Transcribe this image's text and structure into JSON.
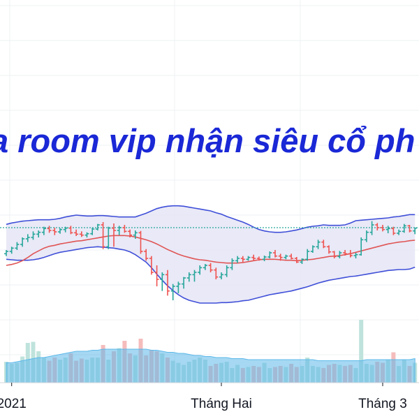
{
  "caption": "a room vip nhận siêu cổ ph",
  "chart_data": {
    "type": "candlestick",
    "x_tick_labels": [
      "2021",
      "Tháng Hai",
      "Tháng 3"
    ],
    "x_tick_bar_index": [
      1,
      40,
      70
    ],
    "reference_line": 100.6,
    "y_range": [
      82,
      112
    ],
    "volume_range": [
      0,
      100
    ],
    "colors": {
      "up": "#26a69a",
      "down": "#ef5350",
      "bollinger_band": "#3f4fd8",
      "bollinger_fill": "#e3e4f5",
      "moving_average": "#e05555",
      "reference_line": "#26a69a",
      "caption": "#1a28d6",
      "volume_up": "#bfe3dc",
      "volume_down": "#f5bcbc",
      "volume_area": "#5db8ea",
      "grid": "#eef0f3"
    },
    "series": [
      {
        "name": "OHLC",
        "ohlc": [
          [
            95.0,
            95.8,
            94.5,
            95.5
          ],
          [
            95.5,
            96.5,
            95.0,
            96.2
          ],
          [
            96.2,
            97.5,
            95.8,
            97.0
          ],
          [
            97.0,
            98.5,
            96.5,
            98.2
          ],
          [
            98.2,
            99.2,
            97.5,
            98.5
          ],
          [
            98.5,
            99.8,
            98.0,
            99.2
          ],
          [
            99.2,
            100.0,
            98.5,
            99.6
          ],
          [
            99.6,
            100.8,
            99.0,
            100.4
          ],
          [
            100.4,
            101.0,
            99.5,
            100.0
          ],
          [
            100.0,
            100.6,
            99.0,
            99.7
          ],
          [
            99.7,
            100.5,
            99.3,
            100.2
          ],
          [
            100.2,
            100.8,
            99.6,
            100.5
          ],
          [
            100.5,
            101.0,
            99.2,
            99.5
          ],
          [
            99.5,
            100.2,
            98.8,
            99.2
          ],
          [
            99.2,
            99.8,
            98.6,
            99.0
          ],
          [
            99.0,
            99.6,
            98.5,
            99.3
          ],
          [
            99.3,
            100.6,
            99.0,
            100.3
          ],
          [
            100.3,
            101.4,
            100.0,
            101.2
          ],
          [
            101.2,
            101.8,
            96.0,
            96.5
          ],
          [
            96.5,
            100.8,
            96.0,
            100.5
          ],
          [
            100.5,
            101.5,
            96.5,
            100.0
          ],
          [
            100.0,
            101.0,
            99.0,
            100.6
          ],
          [
            100.6,
            101.2,
            99.5,
            99.8
          ],
          [
            99.8,
            100.2,
            98.5,
            99.0
          ],
          [
            99.0,
            100.0,
            98.2,
            99.5
          ],
          [
            99.5,
            99.9,
            95.0,
            95.5
          ],
          [
            95.5,
            96.0,
            93.5,
            94.0
          ],
          [
            94.0,
            94.5,
            90.5,
            91.0
          ],
          [
            91.0,
            92.5,
            88.0,
            89.5
          ],
          [
            89.5,
            91.0,
            87.0,
            90.5
          ],
          [
            90.5,
            91.5,
            86.0,
            87.0
          ],
          [
            87.0,
            88.5,
            85.0,
            88.0
          ],
          [
            88.0,
            89.0,
            86.5,
            88.5
          ],
          [
            88.5,
            90.0,
            87.5,
            89.8
          ],
          [
            89.8,
            91.0,
            89.0,
            90.5
          ],
          [
            90.5,
            91.5,
            89.0,
            91.0
          ],
          [
            91.0,
            92.5,
            90.5,
            92.0
          ],
          [
            92.0,
            92.8,
            91.5,
            92.5
          ],
          [
            92.5,
            93.0,
            91.0,
            91.5
          ],
          [
            91.5,
            92.0,
            89.5,
            90.0
          ],
          [
            90.0,
            91.0,
            89.5,
            90.5
          ],
          [
            90.5,
            92.5,
            90.0,
            92.0
          ],
          [
            92.0,
            94.0,
            91.5,
            93.5
          ],
          [
            93.5,
            94.5,
            93.0,
            94.0
          ],
          [
            94.0,
            94.5,
            93.2,
            93.8
          ],
          [
            93.8,
            94.5,
            93.5,
            94.2
          ],
          [
            94.2,
            94.8,
            93.5,
            94.0
          ],
          [
            94.0,
            94.4,
            93.5,
            93.8
          ],
          [
            93.8,
            94.6,
            93.4,
            94.3
          ],
          [
            94.3,
            95.5,
            94.0,
            95.2
          ],
          [
            95.2,
            95.8,
            94.2,
            94.5
          ],
          [
            94.5,
            95.0,
            93.5,
            94.2
          ],
          [
            94.2,
            94.8,
            93.8,
            94.5
          ],
          [
            94.5,
            95.0,
            93.8,
            94.0
          ],
          [
            94.0,
            94.3,
            93.0,
            93.2
          ],
          [
            93.2,
            94.0,
            92.8,
            93.8
          ],
          [
            93.8,
            96.0,
            93.5,
            95.5
          ],
          [
            95.5,
            96.8,
            95.2,
            96.5
          ],
          [
            96.5,
            98.0,
            96.0,
            97.5
          ],
          [
            97.5,
            98.0,
            96.2,
            96.5
          ],
          [
            96.5,
            96.8,
            95.0,
            95.4
          ],
          [
            95.4,
            95.6,
            94.0,
            94.4
          ],
          [
            94.4,
            95.6,
            94.0,
            95.2
          ],
          [
            95.2,
            95.8,
            94.6,
            95.0
          ],
          [
            95.0,
            95.8,
            94.2,
            94.6
          ],
          [
            94.6,
            95.2,
            94.0,
            94.8
          ],
          [
            94.8,
            98.5,
            94.6,
            98.0
          ],
          [
            98.0,
            100.0,
            97.5,
            99.6
          ],
          [
            99.6,
            102.0,
            99.0,
            101.2
          ],
          [
            101.2,
            101.6,
            100.0,
            100.6
          ],
          [
            100.6,
            101.2,
            99.8,
            100.2
          ],
          [
            100.2,
            101.0,
            99.4,
            100.4
          ],
          [
            100.4,
            100.8,
            99.0,
            99.4
          ],
          [
            99.4,
            100.2,
            99.0,
            99.8
          ],
          [
            99.8,
            101.4,
            99.5,
            101.0
          ],
          [
            101.0,
            101.2,
            99.6,
            99.9
          ],
          [
            99.9,
            100.6,
            99.2,
            100.5
          ]
        ]
      },
      {
        "name": "BB upper",
        "values": [
          101.3,
          101.6,
          101.8,
          102.0,
          102.1,
          102.2,
          102.3,
          102.3,
          102.3,
          102.4,
          102.6,
          102.9,
          103.1,
          103.3,
          103.2,
          103.1,
          103.1,
          103.2,
          103.2,
          103.1,
          103.0,
          102.9,
          102.9,
          102.9,
          102.9,
          103.3,
          103.7,
          104.2,
          104.7,
          105.0,
          105.2,
          105.3,
          105.3,
          105.2,
          105.0,
          104.8,
          104.6,
          104.4,
          104.2,
          103.8,
          103.5,
          103.0,
          102.6,
          102.2,
          101.8,
          101.3,
          100.7,
          100.2,
          99.9,
          99.7,
          99.6,
          99.6,
          99.7,
          99.9,
          100.1,
          100.4,
          100.7,
          100.9,
          101.0,
          101.2,
          101.1,
          101.1,
          101.1,
          101.2,
          101.6,
          102.1,
          102.2,
          102.3,
          102.4,
          102.5,
          102.6,
          102.7,
          102.9,
          103.0,
          103.2,
          103.4,
          103.4
        ]
      },
      {
        "name": "BB lower",
        "values": [
          93.8,
          93.7,
          93.6,
          93.6,
          93.6,
          93.7,
          93.9,
          94.2,
          94.6,
          95.0,
          95.3,
          95.5,
          95.7,
          95.9,
          96.1,
          96.3,
          96.4,
          96.5,
          96.4,
          96.3,
          96.2,
          96.0,
          95.8,
          95.4,
          94.8,
          94.0,
          93.2,
          92.0,
          90.6,
          89.3,
          88.1,
          87.1,
          86.2,
          85.5,
          85.0,
          84.7,
          84.4,
          84.4,
          84.4,
          84.4,
          84.5,
          84.5,
          84.6,
          84.7,
          84.9,
          85.0,
          85.3,
          85.6,
          85.9,
          86.2,
          86.4,
          86.6,
          86.8,
          87.0,
          87.3,
          87.6,
          87.9,
          88.3,
          88.7,
          89.0,
          89.3,
          89.5,
          89.7,
          89.9,
          90.1,
          90.2,
          90.4,
          90.6,
          90.8,
          91.0,
          91.2,
          91.4,
          91.5,
          91.6,
          91.6,
          91.7,
          92.1
        ]
      },
      {
        "name": "MA",
        "values": [
          92.5,
          92.7,
          93.0,
          93.5,
          94.2,
          95.0,
          95.6,
          96.2,
          96.6,
          96.8,
          97.1,
          97.3,
          97.5,
          97.7,
          97.8,
          98.0,
          98.2,
          98.4,
          98.6,
          98.8,
          98.9,
          98.9,
          98.9,
          98.8,
          98.6,
          98.3,
          98.0,
          97.6,
          97.1,
          96.5,
          95.9,
          95.4,
          94.9,
          94.5,
          94.2,
          93.9,
          93.7,
          93.6,
          93.4,
          93.2,
          93.1,
          93.0,
          93.0,
          93.0,
          93.1,
          93.3,
          93.5,
          93.7,
          93.8,
          93.8,
          93.8,
          93.7,
          93.6,
          93.6,
          93.5,
          93.6,
          93.7,
          93.8,
          94.0,
          94.2,
          94.4,
          94.5,
          94.6,
          94.8,
          95.0,
          95.3,
          95.6,
          95.9,
          96.2,
          96.5,
          96.8,
          97.1,
          97.3,
          97.5,
          97.6,
          97.8,
          97.9
        ]
      },
      {
        "name": "Volume",
        "values": [
          20,
          18,
          19,
          25,
          38,
          39,
          30,
          24,
          21,
          24,
          22,
          24,
          28,
          21,
          23,
          22,
          24,
          24,
          36,
          22,
          30,
          33,
          40,
          28,
          26,
          42,
          26,
          31,
          30,
          28,
          24,
          21,
          19,
          17,
          20,
          22,
          24,
          22,
          16,
          18,
          19,
          20,
          14,
          17,
          14,
          15,
          16,
          15,
          19,
          14,
          15,
          16,
          15,
          18,
          15,
          16,
          24,
          16,
          15,
          14,
          17,
          18,
          17,
          16,
          17,
          14,
          60,
          18,
          17,
          20,
          19,
          22,
          29,
          16,
          22,
          16,
          19
        ]
      },
      {
        "name": "Volume MA",
        "values": [
          19,
          19,
          20,
          21,
          22,
          23,
          24,
          24,
          25,
          26,
          27,
          28,
          29,
          30,
          30,
          30,
          31,
          31,
          32,
          32,
          32,
          32,
          32,
          32,
          32,
          32,
          32,
          31,
          31,
          30,
          29,
          29,
          28,
          28,
          27,
          26,
          26,
          25,
          25,
          24,
          24,
          24,
          23,
          23,
          23,
          22,
          22,
          22,
          22,
          22,
          22,
          22,
          22,
          22,
          22,
          22,
          22,
          22,
          21,
          21,
          21,
          21,
          21,
          21,
          21,
          21,
          21,
          22,
          22,
          22,
          22,
          22,
          22,
          22,
          22,
          22,
          23
        ]
      }
    ]
  }
}
